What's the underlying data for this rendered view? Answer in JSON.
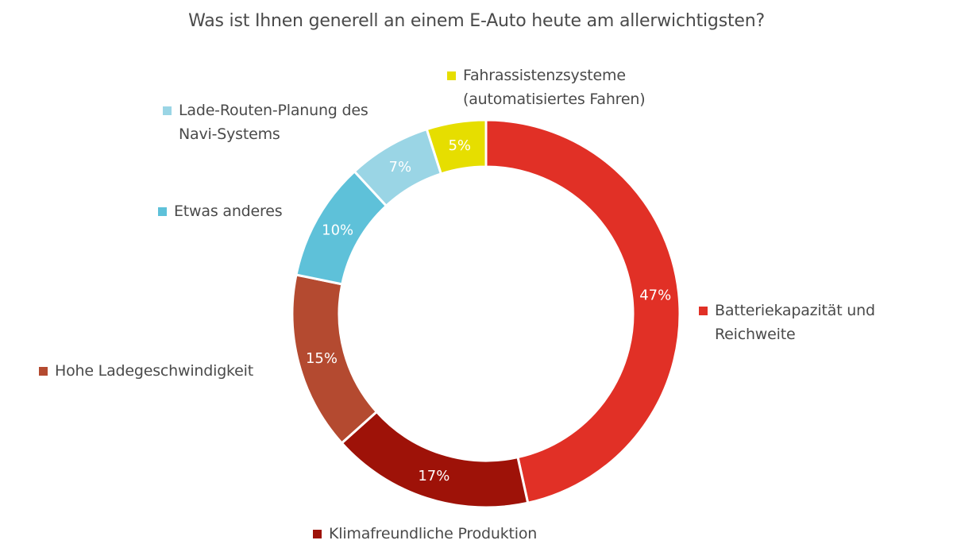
{
  "chart_data": {
    "type": "pie",
    "variant": "donut",
    "title": "Was ist Ihnen generell an einem E-Auto heute am allerwichtigsten?",
    "categories": [
      "Batteriekapazität und Reichweite",
      "Klimafreundliche Produktion",
      "Hohe Ladegeschwindigkeit",
      "Etwas anderes",
      "Lade-Routen-Planung des Navi-Systems",
      "Fahrassistenzsysteme (automatisiertes Fahren)"
    ],
    "values": [
      47,
      17,
      15,
      10,
      7,
      5
    ],
    "unit": "%",
    "colors": [
      "#e13026",
      "#9e1208",
      "#b44a30",
      "#5ec1d9",
      "#9ad5e5",
      "#e6de00"
    ],
    "legend_position": "around (labels next to slices)",
    "start_angle": "12 o'clock, clockwise"
  },
  "title": "Was ist Ihnen generell an einem E-Auto heute am allerwichtigsten?",
  "slices": [
    {
      "label": "Batteriekapazität und\nReichweite",
      "value_label": "47%",
      "color": "#e13026"
    },
    {
      "label": "Klimafreundliche Produktion",
      "value_label": "17%",
      "color": "#9e1208"
    },
    {
      "label": "Hohe Ladegeschwindigkeit",
      "value_label": "15%",
      "color": "#b44a30"
    },
    {
      "label": "Etwas anderes",
      "value_label": "10%",
      "color": "#5ec1d9"
    },
    {
      "label": "Lade-Routen-Planung des\nNavi-Systems",
      "value_label": "7%",
      "color": "#9ad5e5"
    },
    {
      "label": "Fahrassistenzsysteme\n(automatisiertes Fahren)",
      "value_label": "5%",
      "color": "#e6de00"
    }
  ]
}
